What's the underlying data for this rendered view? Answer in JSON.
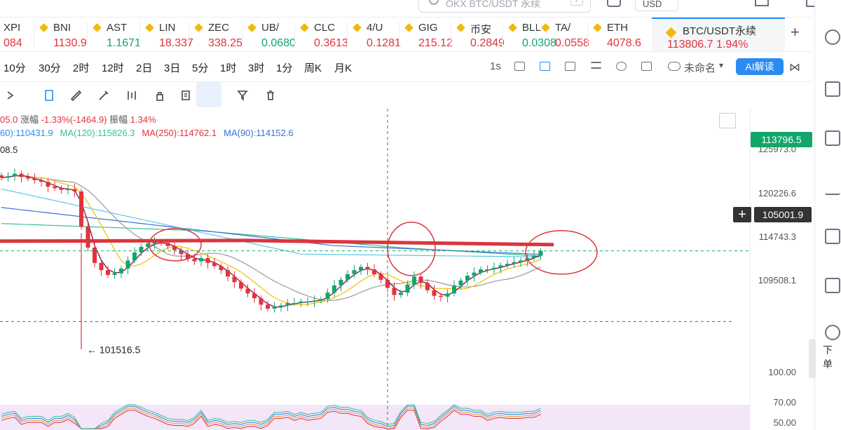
{
  "top": {
    "search_placeholder": "OKX BTC/USDT 永续",
    "search_hint": "/",
    "currency": "USD"
  },
  "tickers": [
    {
      "symbol": "XPI",
      "price": "084",
      "color": "#e2333c"
    },
    {
      "symbol": "BNI",
      "price": "1130.9",
      "color": "#e2333c"
    },
    {
      "symbol": "AST",
      "price": "1.1671",
      "color": "#12a66a"
    },
    {
      "symbol": "LIN",
      "price": "18.337",
      "color": "#e2333c"
    },
    {
      "symbol": "ZEC",
      "price": "338.25",
      "color": "#e2333c"
    },
    {
      "symbol": "UB/",
      "price": "0.0680",
      "color": "#12a66a"
    },
    {
      "symbol": "CLC",
      "price": "0.3613",
      "color": "#e2333c"
    },
    {
      "symbol": "4/U",
      "price": "0.1281",
      "color": "#e2333c"
    },
    {
      "symbol": "GIG",
      "price": "215.12",
      "color": "#e2333c"
    },
    {
      "symbol": "币安",
      "price": "0.2849",
      "color": "#e2333c"
    },
    {
      "symbol": "BLL",
      "price": "0.0308",
      "color": "#12a66a"
    },
    {
      "symbol": "TA/",
      "price": "0.0558",
      "color": "#e2333c"
    },
    {
      "symbol": "ETH",
      "price": "4078.6",
      "color": "#e2333c"
    }
  ],
  "active_ticker": {
    "symbol": "BTC/USDT永续",
    "price": "113806.7",
    "change": "1.94%",
    "color": "#e2333c"
  },
  "intervals": [
    "10分",
    "30分",
    "2时",
    "12时",
    "2日",
    "3日",
    "5分",
    "1时",
    "3时",
    "1分",
    "周K",
    "月K"
  ],
  "toolbar_right": {
    "speed": "1s",
    "layout_name": "未命名",
    "ai_label": "AI解读"
  },
  "legend": {
    "line1_value_start": "05.0",
    "change_label": "涨幅",
    "change_value": "-1.33%(-1464.9)",
    "amp_label": "振幅",
    "amp_value": "1.34%"
  },
  "ma_legend": [
    {
      "text": "60):110431.9",
      "color": "#2a8cf0"
    },
    {
      "text": "MA(120):115826.3",
      "color": "#3ac286"
    },
    {
      "text": "MA(250):114762.1",
      "color": "#e2333c"
    },
    {
      "text": "MA(90):114152.6",
      "color": "#3b6fd6"
    }
  ],
  "price_axis": {
    "labels": [
      "125973.0",
      "120226.6",
      "114743.3",
      "109508.1",
      "100.00",
      "70.00",
      "50.00"
    ],
    "current_price": "113796.5",
    "crosshair_price": "105001.9"
  },
  "annotations": {
    "high_label": "08.5",
    "low_label": "← 101516.5"
  },
  "sidebar_label": "下单",
  "chart_data": {
    "type": "candlestick",
    "price_range": [
      97000,
      128000
    ],
    "current_price": 113796.5,
    "crosshair_price": 105001.9,
    "resistance_price": 114743.3,
    "low_marker": 101516.5,
    "closes": [
      122900,
      123100,
      123400,
      123000,
      122800,
      122600,
      122400,
      121800,
      121600,
      121400,
      121500,
      121200,
      116800,
      114200,
      112300,
      111400,
      110800,
      111000,
      111600,
      112600,
      113600,
      114300,
      114700,
      114900,
      114800,
      114400,
      113900,
      113400,
      112800,
      112500,
      112900,
      112300,
      111900,
      111400,
      110600,
      109900,
      109100,
      108500,
      107900,
      107100,
      106600,
      106800,
      107000,
      107300,
      107300,
      107500,
      107500,
      107600,
      107800,
      108600,
      109500,
      110200,
      110900,
      111400,
      111800,
      111500,
      110900,
      110200,
      109200,
      108300,
      108600,
      109600,
      110600,
      109800,
      108900,
      108200,
      108100,
      108500,
      109500,
      110100,
      110700,
      111100,
      111500,
      111500,
      111700,
      112000,
      112200,
      112400,
      112600,
      112900,
      113200,
      113800
    ]
  }
}
